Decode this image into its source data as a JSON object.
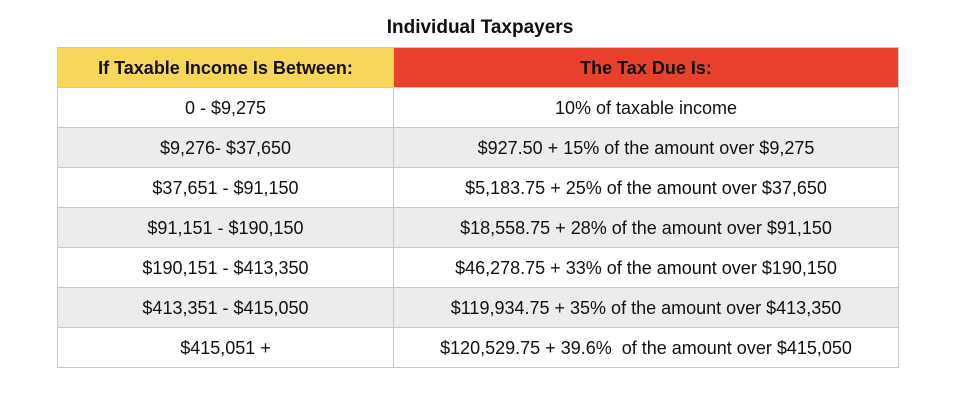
{
  "title": "Individual Taxpayers",
  "colors": {
    "income_header_bg": "#f6d75a",
    "tax_header_bg": "#e8412c",
    "alt_row_bg": "#ececec"
  },
  "table": {
    "headers": [
      "If Taxable Income Is Between:",
      "The Tax Due Is:"
    ],
    "rows": [
      [
        "0 - $9,275",
        "10% of taxable income"
      ],
      [
        "$9,276- $37,650",
        "$927.50 + 15% of the amount over $9,275"
      ],
      [
        "$37,651 - $91,150",
        "$5,183.75 + 25% of the amount over $37,650"
      ],
      [
        "$91,151 - $190,150",
        "$18,558.75 + 28% of the amount over $91,150"
      ],
      [
        "$190,151 - $413,350",
        "$46,278.75 + 33% of the amount over $190,150"
      ],
      [
        "$413,351 - $415,050",
        "$119,934.75 + 35% of the amount over $413,350"
      ],
      [
        "$415,051 +",
        "$120,529.75 + 39.6%  of the amount over $415,050"
      ]
    ]
  }
}
